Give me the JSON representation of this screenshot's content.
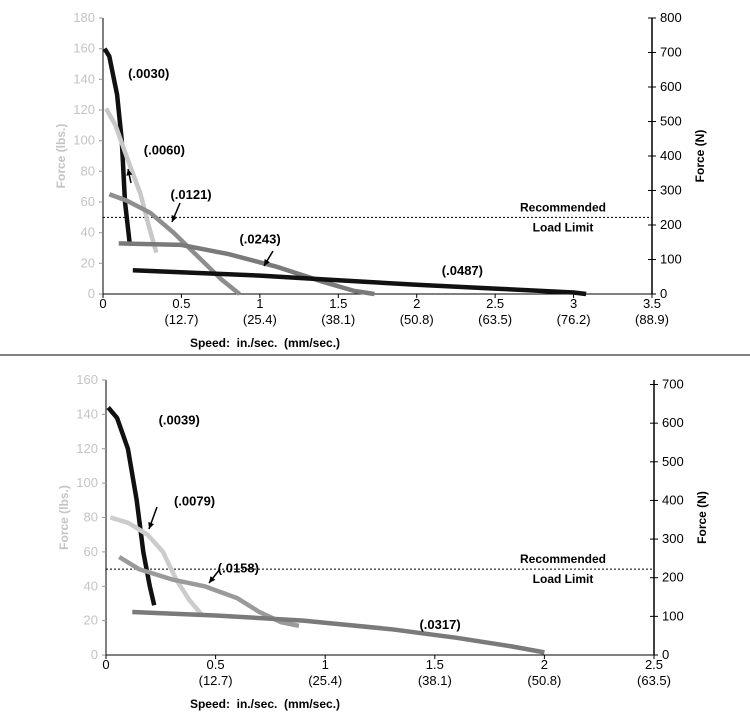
{
  "chart_data": [
    {
      "type": "line",
      "ylabel_left": "Force (lbs.)",
      "ylabel_right": "Force (N)",
      "xlabel": "Speed:  in./sec.  (mm/sec.)",
      "xlim": [
        0,
        3.5
      ],
      "ylim_left": [
        0,
        180
      ],
      "ylim_right": [
        0,
        800
      ],
      "x_ticks": [
        {
          "value": 0,
          "label": "0",
          "sub": ""
        },
        {
          "value": 0.5,
          "label": "0.5",
          "sub": "(12.7)"
        },
        {
          "value": 1,
          "label": "1",
          "sub": "(25.4)"
        },
        {
          "value": 1.5,
          "label": "1.5",
          "sub": "(38.1)"
        },
        {
          "value": 2,
          "label": "2",
          "sub": "(50.8)"
        },
        {
          "value": 2.5,
          "label": "2.5",
          "sub": "(63.5)"
        },
        {
          "value": 3,
          "label": "3",
          "sub": "(76.2)"
        },
        {
          "value": 3.5,
          "label": "3.5",
          "sub": "(88.9)"
        }
      ],
      "y_ticks_left": [
        "0",
        "20",
        "40",
        "60",
        "80",
        "100",
        "120",
        "140",
        "160",
        "180"
      ],
      "y_ticks_right": [
        "0",
        "100",
        "200",
        "300",
        "400",
        "500",
        "600",
        "700",
        "800"
      ],
      "reference_line": {
        "y": 50,
        "label_1": "Recommended",
        "label_2": "Load Limit"
      },
      "series": [
        {
          "name": "(.0030)",
          "color": "#111111",
          "points": [
            [
              0.01,
              160
            ],
            [
              0.04,
              155
            ],
            [
              0.09,
              130
            ],
            [
              0.12,
              100
            ],
            [
              0.14,
              60
            ],
            [
              0.17,
              33
            ]
          ]
        },
        {
          "name": "(.0060)",
          "color": "#c8c8c8",
          "points": [
            [
              0.02,
              121
            ],
            [
              0.08,
              110
            ],
            [
              0.16,
              87
            ],
            [
              0.24,
              65
            ],
            [
              0.29,
              45
            ],
            [
              0.34,
              27
            ]
          ]
        },
        {
          "name": "(.0121)",
          "color": "#8e8e8e",
          "points": [
            [
              0.04,
              65
            ],
            [
              0.15,
              61
            ],
            [
              0.3,
              53
            ],
            [
              0.45,
              40
            ],
            [
              0.6,
              25
            ],
            [
              0.75,
              10
            ],
            [
              0.87,
              0
            ]
          ]
        },
        {
          "name": "(.0243)",
          "color": "#7a7a7a",
          "points": [
            [
              0.1,
              33
            ],
            [
              0.5,
              32
            ],
            [
              0.8,
              26
            ],
            [
              1.1,
              18
            ],
            [
              1.4,
              8
            ],
            [
              1.6,
              2
            ],
            [
              1.73,
              0
            ]
          ]
        },
        {
          "name": "(.0487)",
          "color": "#111111",
          "points": [
            [
              0.19,
              15.5
            ],
            [
              1.0,
              12
            ],
            [
              1.5,
              9
            ],
            [
              2.0,
              6
            ],
            [
              2.5,
              3.5
            ],
            [
              3.0,
              1
            ],
            [
              3.08,
              0
            ]
          ]
        }
      ],
      "annotations": [
        {
          "text": "(.0030)",
          "x": 0.16,
          "y": 141
        },
        {
          "text": "(.0060)",
          "x": 0.26,
          "y": 91
        },
        {
          "text": "(.0121)",
          "x": 0.43,
          "y": 62
        },
        {
          "text": "(.0243)",
          "x": 0.87,
          "y": 33
        },
        {
          "text": "(.0487)",
          "x": 2.16,
          "y": 12.5
        }
      ]
    },
    {
      "type": "line",
      "ylabel_left": "Force (lbs.)",
      "ylabel_right": "Force (N)",
      "xlabel": "Speed:  in./sec.  (mm/sec.)",
      "xlim": [
        0,
        2.5
      ],
      "ylim_left": [
        0,
        160
      ],
      "ylim_right": [
        0,
        711.7
      ],
      "x_ticks": [
        {
          "value": 0,
          "label": "0",
          "sub": ""
        },
        {
          "value": 0.5,
          "label": "0.5",
          "sub": "(12.7)"
        },
        {
          "value": 1,
          "label": "1",
          "sub": "(25.4)"
        },
        {
          "value": 1.5,
          "label": "1.5",
          "sub": "(38.1)"
        },
        {
          "value": 2,
          "label": "2",
          "sub": "(50.8)"
        },
        {
          "value": 2.5,
          "label": "2.5",
          "sub": "(63.5)"
        }
      ],
      "y_ticks_left": [
        "0",
        "20",
        "40",
        "60",
        "80",
        "100",
        "120",
        "140",
        "160"
      ],
      "y_ticks_right": [
        "0",
        "100",
        "200",
        "300",
        "400",
        "500",
        "600",
        "700"
      ],
      "reference_line": {
        "y": 50,
        "label_1": "Recommended",
        "label_2": "Load Limit"
      },
      "series": [
        {
          "name": "(.0039)",
          "color": "#111111",
          "points": [
            [
              0.01,
              144
            ],
            [
              0.05,
              138
            ],
            [
              0.1,
              120
            ],
            [
              0.14,
              90
            ],
            [
              0.17,
              60
            ],
            [
              0.2,
              40
            ],
            [
              0.22,
              29
            ]
          ]
        },
        {
          "name": "(.0079)",
          "color": "#cccccc",
          "points": [
            [
              0.02,
              80
            ],
            [
              0.1,
              77
            ],
            [
              0.19,
              70
            ],
            [
              0.26,
              60
            ],
            [
              0.32,
              44
            ],
            [
              0.38,
              32
            ],
            [
              0.44,
              23
            ]
          ]
        },
        {
          "name": "(.0158)",
          "color": "#9a9a9a",
          "points": [
            [
              0.06,
              57
            ],
            [
              0.15,
              50
            ],
            [
              0.3,
              44
            ],
            [
              0.45,
              40
            ],
            [
              0.6,
              33
            ],
            [
              0.7,
              25
            ],
            [
              0.8,
              19
            ],
            [
              0.88,
              17
            ]
          ]
        },
        {
          "name": "(.0317)",
          "color": "#7a7a7a",
          "points": [
            [
              0.12,
              25
            ],
            [
              0.5,
              23
            ],
            [
              0.9,
              20
            ],
            [
              1.3,
              15
            ],
            [
              1.6,
              10
            ],
            [
              1.85,
              5
            ],
            [
              2.0,
              1.5
            ]
          ]
        }
      ],
      "annotations": [
        {
          "text": "(.0039)",
          "x": 0.24,
          "y": 134
        },
        {
          "text": "(.0079)",
          "x": 0.31,
          "y": 87
        },
        {
          "text": "(.0158)",
          "x": 0.51,
          "y": 48
        },
        {
          "text": "(.0317)",
          "x": 1.43,
          "y": 15
        }
      ]
    }
  ]
}
